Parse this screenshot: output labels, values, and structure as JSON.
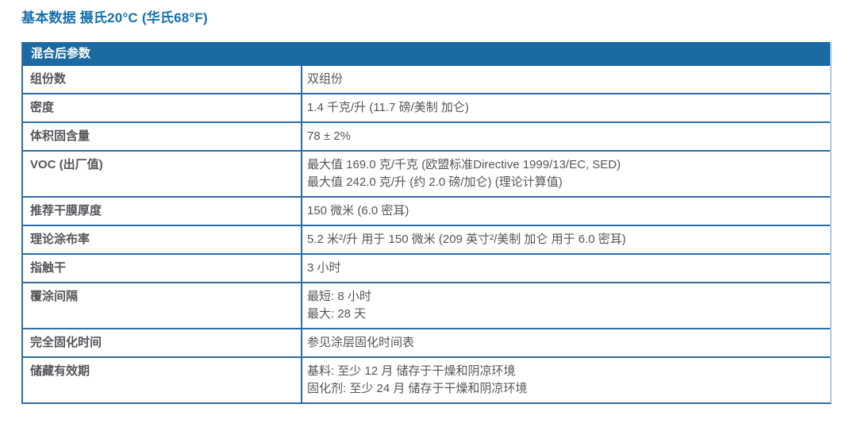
{
  "page_title": "基本数据 摄氏20°C (华氏68°F)",
  "table": {
    "header": "混合后参数",
    "rows": [
      {
        "label": "组份数",
        "values": [
          "双组份"
        ]
      },
      {
        "label": "密度",
        "values": [
          "1.4 千克/升 (11.7 磅/美制 加仑)"
        ]
      },
      {
        "label": "体积固含量",
        "values": [
          "78 ± 2%"
        ]
      },
      {
        "label": "VOC (出厂值)",
        "values": [
          "最大值 169.0 克/千克 (欧盟标准Directive 1999/13/EC, SED)",
          "最大值 242.0 克/升 (约 2.0 磅/加仑) (理论计算值)"
        ]
      },
      {
        "label": "推荐干膜厚度",
        "values": [
          "150 微米 (6.0 密耳)"
        ]
      },
      {
        "label": "理论涂布率",
        "values": [
          "5.2 米²/升 用于 150 微米 (209 英寸²/美制 加仑 用于 6.0 密耳)"
        ]
      },
      {
        "label": "指触干",
        "values": [
          "3 小时"
        ]
      },
      {
        "label": "覆涂间隔",
        "values": [
          "最短: 8 小时",
          "最大: 28 天"
        ]
      },
      {
        "label": "完全固化时间",
        "values": [
          "参见涂层固化时间表"
        ]
      },
      {
        "label": "储藏有效期",
        "values": [
          "基料: 至少 12 月 储存于干燥和阴凉环境",
          "固化剂: 至少 24 月 储存于干燥和阴凉环境"
        ]
      }
    ]
  },
  "colors": {
    "title_text": "#1670ae",
    "header_background": "#1c6aa2",
    "header_text": "#ffffff",
    "border": "#2d6ea8",
    "outer_right_border": "#a9c9e6",
    "cell_text": "#54565a"
  }
}
